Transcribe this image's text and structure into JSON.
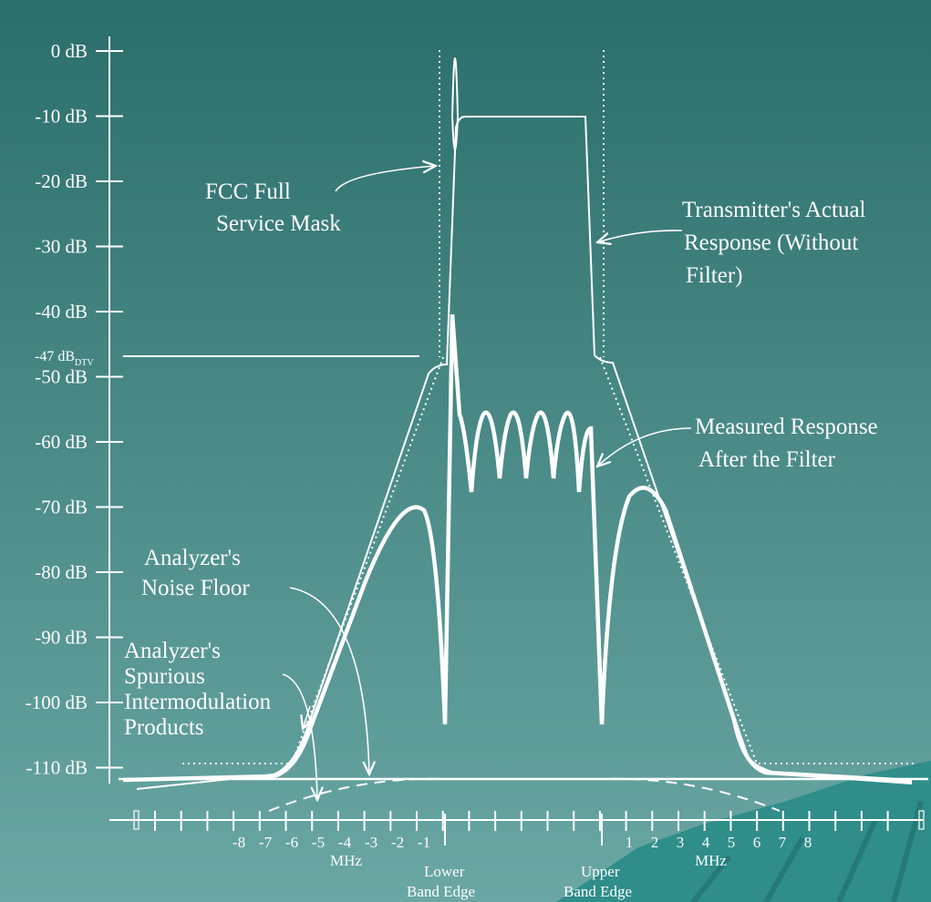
{
  "y_axis": {
    "labels": [
      "0 dB",
      "-10 dB",
      "-20 dB",
      "-30 dB",
      "-40 dB",
      "-50 dB",
      "-60 dB",
      "-70 dB",
      "-80 dB",
      "-90 dB",
      "-100 dB",
      "-110 dB"
    ],
    "dtv_level": "-47 dB",
    "dtv_subscript": "DTV"
  },
  "x_axis": {
    "lower_labels": [
      "-8",
      "-7",
      "-6",
      "-5",
      "-4",
      "-3",
      "-2",
      "-1"
    ],
    "upper_labels": [
      "1",
      "2",
      "3",
      "4",
      "5",
      "6",
      "7",
      "8"
    ],
    "unit_left": "MHz",
    "unit_right": "MHz",
    "lower_edge": [
      "Lower",
      "Band Edge"
    ],
    "upper_edge": [
      "Upper",
      "Band Edge"
    ]
  },
  "annotations": {
    "fcc_mask": [
      "FCC Full",
      "Service Mask"
    ],
    "transmitter": [
      "Transmitter's Actual",
      "Response (Without",
      "Filter)"
    ],
    "measured": [
      "Measured Response",
      "After the Filter"
    ],
    "noise_floor": [
      "Analyzer's",
      "Noise Floor"
    ],
    "spurious": [
      "Analyzer's",
      "Spurious",
      "Intermodulation",
      "Products"
    ]
  }
}
